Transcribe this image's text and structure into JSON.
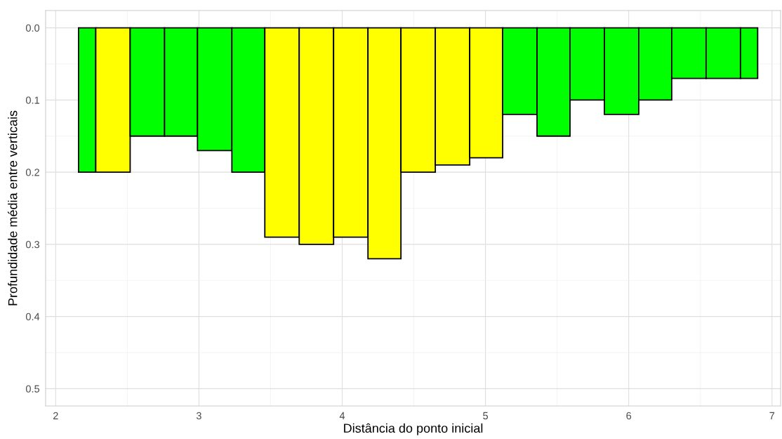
{
  "chart_data": {
    "type": "histogram",
    "xlabel": "Distância do ponto inicial",
    "ylabel": "Profundidade média entre verticais",
    "bins": [
      2.16,
      2.28,
      2.52,
      2.76,
      2.99,
      3.23,
      3.46,
      3.7,
      3.94,
      4.18,
      4.41,
      4.65,
      4.89,
      5.12,
      5.36,
      5.59,
      5.83,
      6.07,
      6.3,
      6.54,
      6.78,
      6.9
    ],
    "values": [
      0.2,
      0.2,
      0.15,
      0.15,
      0.17,
      0.2,
      0.29,
      0.3,
      0.29,
      0.32,
      0.2,
      0.19,
      0.18,
      0.12,
      0.15,
      0.1,
      0.12,
      0.1,
      0.07,
      0.07,
      0.07
    ],
    "colors": [
      "#00ff00",
      "#ffff00",
      "#00ff00",
      "#00ff00",
      "#00ff00",
      "#00ff00",
      "#ffff00",
      "#ffff00",
      "#ffff00",
      "#ffff00",
      "#ffff00",
      "#ffff00",
      "#ffff00",
      "#00ff00",
      "#00ff00",
      "#00ff00",
      "#00ff00",
      "#00ff00",
      "#00ff00",
      "#00ff00",
      "#00ff00"
    ],
    "xlim": [
      1.93,
      7.06
    ],
    "ylim": [
      0.524,
      -0.024
    ],
    "xticks": [
      2,
      {
        "value": 2.5,
        "label": null
      },
      3,
      {
        "value": 3.5,
        "label": null
      },
      4,
      {
        "value": 4.5,
        "label": null
      },
      5,
      {
        "value": 5.5,
        "label": null
      },
      6,
      {
        "value": 6.5,
        "label": null
      },
      7
    ],
    "yticks": [
      {
        "value": 0.0,
        "label": "0.0"
      },
      {
        "value": 0.05,
        "label": null
      },
      0.1,
      {
        "value": 0.15,
        "label": null
      },
      0.2,
      {
        "value": 0.25,
        "label": null
      },
      0.3,
      {
        "value": 0.35,
        "label": null
      },
      0.4,
      {
        "value": 0.45,
        "label": null
      },
      0.5
    ],
    "grid": true
  }
}
